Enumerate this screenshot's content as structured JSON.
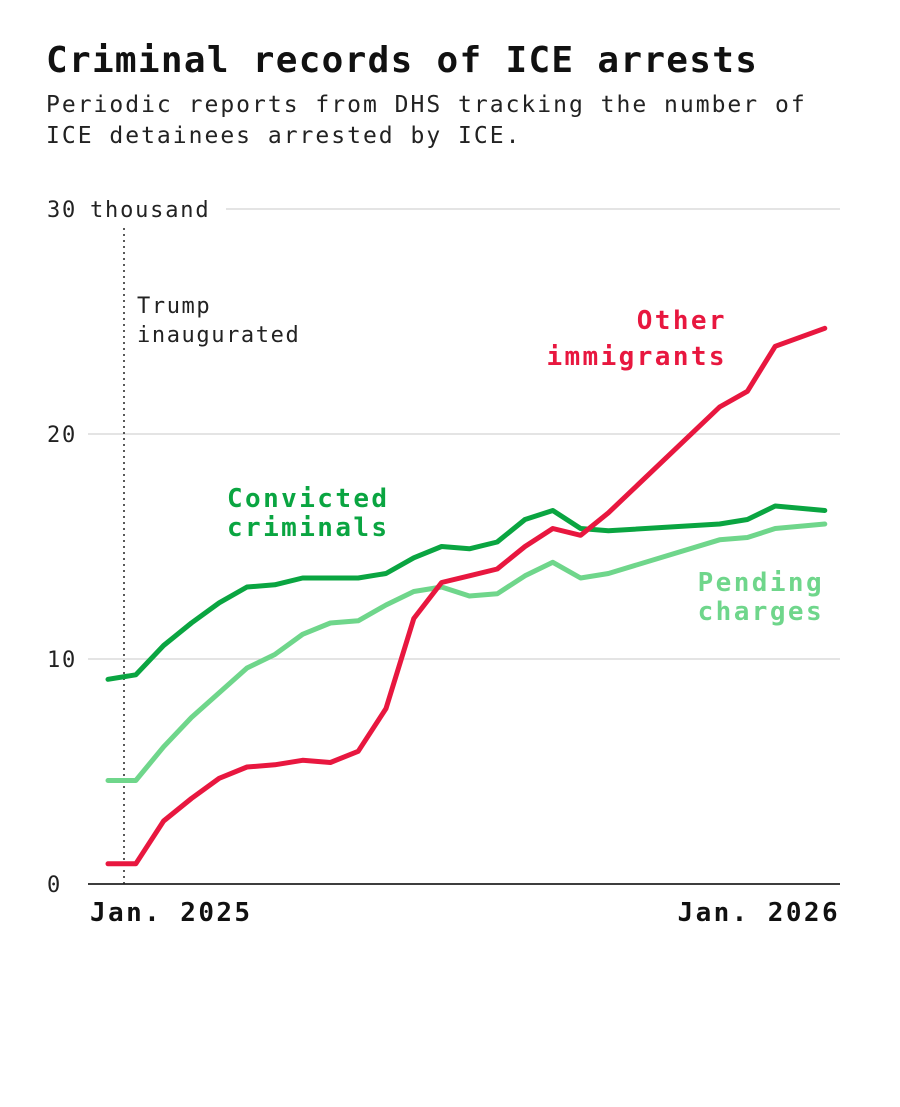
{
  "chart_data": {
    "type": "line",
    "title": "Criminal records of ICE arrests",
    "subtitle_lines": [
      "Periodic reports from DHS tracking the number of",
      "ICE detainees arrested by ICE."
    ],
    "xlabel": "",
    "ylabel": "",
    "y_unit_label": "thousand",
    "ylim": [
      0,
      30
    ],
    "yticks": [
      {
        "value": 0,
        "label": "0"
      },
      {
        "value": 10,
        "label": "10"
      },
      {
        "value": 20,
        "label": "20"
      },
      {
        "value": 30,
        "label": "30"
      }
    ],
    "xticks": [
      {
        "value": "2025-01-01",
        "label": "Jan. 2025"
      },
      {
        "value": "2026-01-01",
        "label": "Jan. 2026"
      }
    ],
    "grid": true,
    "legend": "direct labels",
    "annotation": {
      "date": "2025-01-20",
      "lines": [
        "Trump",
        "inaugurated"
      ]
    },
    "x": [
      "2025-01-12",
      "2025-01-26",
      "2025-02-09",
      "2025-02-23",
      "2025-03-09",
      "2025-03-23",
      "2025-04-06",
      "2025-04-20",
      "2025-05-04",
      "2025-05-18",
      "2025-06-01",
      "2025-06-15",
      "2025-06-29",
      "2025-07-13",
      "2025-07-27",
      "2025-08-10",
      "2025-08-24",
      "2025-09-07",
      "2025-09-21",
      "2025-11-16",
      "2025-11-30",
      "2025-12-14",
      "2026-01-08"
    ],
    "series": [
      {
        "name": "Convicted criminals",
        "label_lines": [
          "Convicted",
          "criminals"
        ],
        "color": "#0aa541",
        "values": [
          9.1,
          9.3,
          10.6,
          11.6,
          12.5,
          13.2,
          13.3,
          13.6,
          13.6,
          13.6,
          13.8,
          14.5,
          15.0,
          14.9,
          15.2,
          16.2,
          16.6,
          15.8,
          15.7,
          16.0,
          16.2,
          16.8,
          16.6
        ]
      },
      {
        "name": "Pending charges",
        "label_lines": [
          "Pending",
          "charges"
        ],
        "color": "#6fd68b",
        "values": [
          4.6,
          4.6,
          6.1,
          7.4,
          8.5,
          9.6,
          10.2,
          11.1,
          11.6,
          11.7,
          12.4,
          13.0,
          13.2,
          12.8,
          12.9,
          13.7,
          14.3,
          13.6,
          13.8,
          15.3,
          15.4,
          15.8,
          16.0
        ]
      },
      {
        "name": "Other immigrants",
        "label_lines": [
          "Other",
          "immigrants"
        ],
        "color": "#e8173f",
        "values": [
          0.9,
          0.9,
          2.8,
          3.8,
          4.7,
          5.2,
          5.3,
          5.5,
          5.4,
          5.9,
          7.8,
          11.8,
          13.4,
          13.7,
          14.0,
          15.0,
          15.8,
          15.5,
          16.5,
          21.2,
          21.9,
          23.9,
          24.7
        ]
      }
    ]
  }
}
